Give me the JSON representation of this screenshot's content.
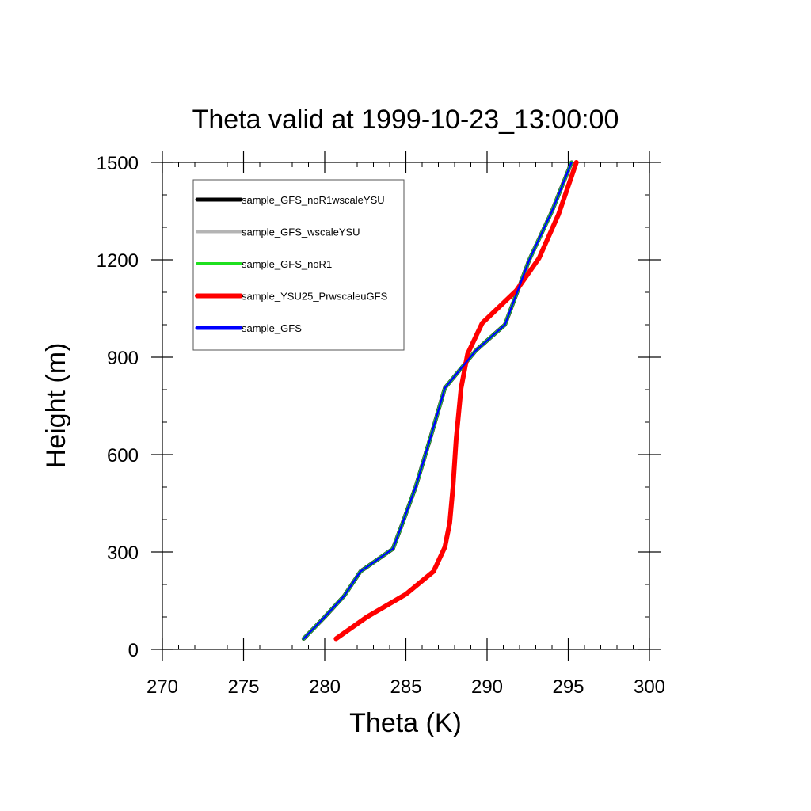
{
  "chart_data": {
    "type": "line",
    "title": "Theta valid at 1999-10-23_13:00:00",
    "xlabel": "Theta (K)",
    "ylabel": "Height (m)",
    "xlim": [
      270,
      300
    ],
    "ylim": [
      0,
      1500
    ],
    "xticks": [
      270,
      275,
      280,
      285,
      290,
      295,
      300
    ],
    "yticks": [
      0,
      300,
      600,
      900,
      1200,
      1500
    ],
    "x_minor_step": 1,
    "y_minor_step": 100,
    "grid": false,
    "legend_position": "top-left",
    "series": [
      {
        "name": "sample_GFS_noR1wscaleYSU",
        "color": "#000000",
        "x": [
          278.7,
          280.0,
          281.2,
          282.2,
          284.2,
          284.8,
          285.6,
          286.5,
          287.4,
          289.3,
          291.1,
          292.6,
          294.0,
          295.2
        ],
        "y": [
          33,
          100,
          165,
          240,
          310,
          390,
          500,
          650,
          805,
          920,
          1000,
          1200,
          1350,
          1500
        ]
      },
      {
        "name": "sample_GFS_wscaleYSU",
        "color": "#b4b4b4",
        "x": [
          278.7,
          280.0,
          281.2,
          282.2,
          284.2,
          284.8,
          285.6,
          286.5,
          287.4,
          289.3,
          291.1,
          292.6,
          294.0,
          295.2
        ],
        "y": [
          33,
          100,
          165,
          240,
          310,
          390,
          500,
          650,
          805,
          920,
          1000,
          1200,
          1350,
          1500
        ]
      },
      {
        "name": "sample_GFS_noR1",
        "color": "#1fe01f",
        "x": [
          278.7,
          280.0,
          281.2,
          282.2,
          284.2,
          284.8,
          285.6,
          286.5,
          287.4,
          289.3,
          291.1,
          292.6,
          294.0,
          295.2
        ],
        "y": [
          33,
          100,
          165,
          240,
          310,
          390,
          500,
          650,
          805,
          920,
          1000,
          1200,
          1350,
          1500
        ]
      },
      {
        "name": "sample_YSU25_PrwscaleuGFS",
        "color": "#ff0000",
        "x": [
          280.7,
          282.6,
          285.0,
          286.7,
          287.4,
          287.7,
          287.9,
          288.1,
          288.4,
          288.8,
          289.7,
          291.8,
          293.2,
          294.4,
          295.5
        ],
        "y": [
          33,
          100,
          170,
          240,
          315,
          390,
          500,
          650,
          805,
          910,
          1005,
          1105,
          1205,
          1340,
          1500
        ]
      },
      {
        "name": "sample_GFS",
        "color": "#0000ff",
        "x": [
          278.7,
          280.0,
          281.2,
          282.2,
          284.2,
          284.8,
          285.6,
          286.5,
          287.4,
          289.3,
          291.1,
          292.6,
          294.0,
          295.2
        ],
        "y": [
          33,
          100,
          165,
          240,
          310,
          390,
          500,
          650,
          805,
          920,
          1000,
          1200,
          1350,
          1500
        ]
      }
    ]
  }
}
